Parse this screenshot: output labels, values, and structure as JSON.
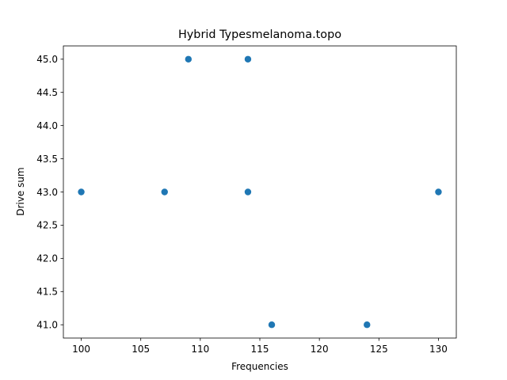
{
  "chart_data": {
    "type": "scatter",
    "title": "Hybrid Typesmelanoma.topo",
    "xlabel": "Frequencies",
    "ylabel": "Drive sum",
    "xlim": [
      98.5,
      131.5
    ],
    "ylim": [
      40.8,
      45.2
    ],
    "xticks": [
      100,
      105,
      110,
      115,
      120,
      125,
      130
    ],
    "xtick_labels": [
      "100",
      "105",
      "110",
      "115",
      "120",
      "125",
      "130"
    ],
    "yticks": [
      41.0,
      41.5,
      42.0,
      42.5,
      43.0,
      43.5,
      44.0,
      44.5,
      45.0
    ],
    "ytick_labels": [
      "41.0",
      "41.5",
      "42.0",
      "42.5",
      "43.0",
      "43.5",
      "44.0",
      "44.5",
      "45.0"
    ],
    "grid": false,
    "series": [
      {
        "color": "#1f77b4",
        "points": [
          {
            "x": 100,
            "y": 43
          },
          {
            "x": 107,
            "y": 43
          },
          {
            "x": 109,
            "y": 45
          },
          {
            "x": 114,
            "y": 45
          },
          {
            "x": 114,
            "y": 43
          },
          {
            "x": 116,
            "y": 41
          },
          {
            "x": 124,
            "y": 41
          },
          {
            "x": 130,
            "y": 43
          }
        ]
      }
    ]
  }
}
